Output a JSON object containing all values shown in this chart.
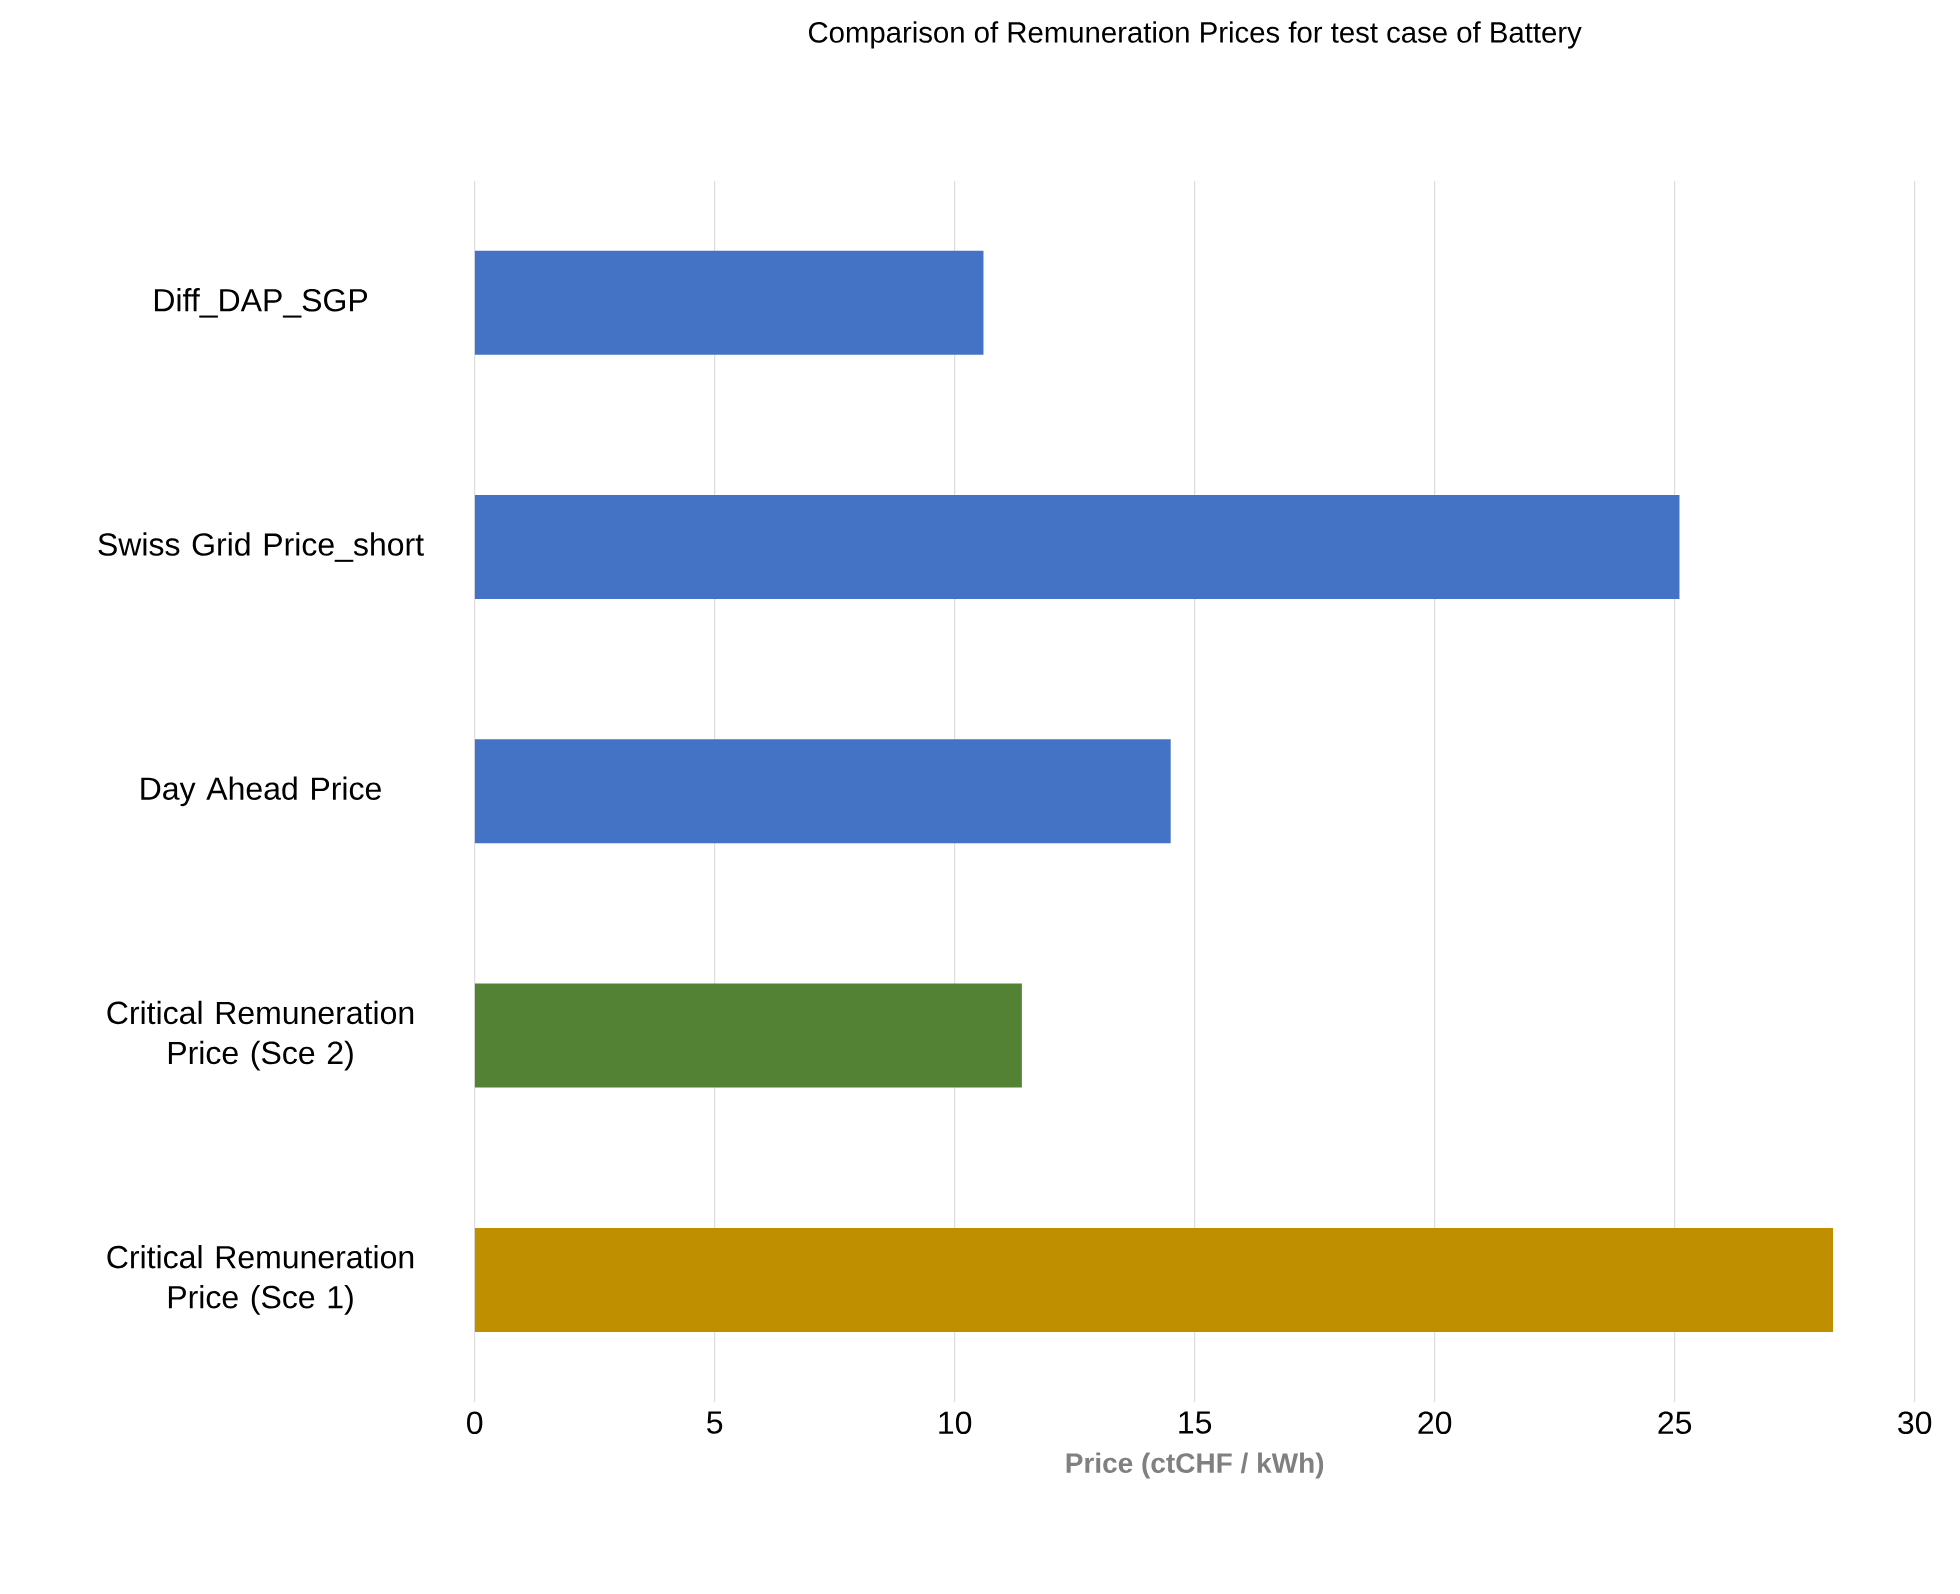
{
  "chart_data": {
    "type": "bar",
    "orientation": "horizontal",
    "title": "Comparison of Remuneration Prices for test case of Battery",
    "xlabel": "Price (ctCHF / kWh)",
    "categories": [
      "Diff_DAP_SGP",
      "Swiss Grid Price_short",
      "Day Ahead Price",
      "Critical Remuneration Price (Sce 2)",
      "Critical Remuneration Price (Sce 1)"
    ],
    "values": [
      10.6,
      25.1,
      14.5,
      11.4,
      28.3
    ],
    "colors": [
      "#4472c4",
      "#4472c4",
      "#4472c4",
      "#548235",
      "#bf8f00"
    ],
    "xlim": [
      0,
      30
    ],
    "xticks": [
      0,
      5,
      10,
      15,
      20,
      25,
      30
    ],
    "grid": "x"
  }
}
